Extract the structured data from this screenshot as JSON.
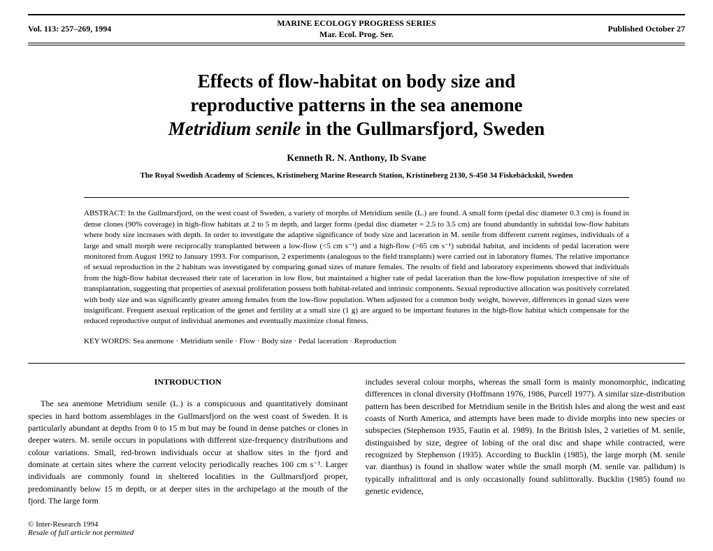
{
  "header": {
    "volume": "Vol. 113: 257–269, 1994",
    "series_line1": "MARINE ECOLOGY PROGRESS SERIES",
    "series_line2": "Mar. Ecol. Prog. Ser.",
    "published": "Published October 27"
  },
  "title_line1": "Effects of flow-habitat on body size and",
  "title_line2": "reproductive patterns in the sea anemone",
  "title_line3_ital": "Metridium senile",
  "title_line3_rest": " in the Gullmarsfjord, Sweden",
  "authors": "Kenneth R. N. Anthony, Ib Svane",
  "affiliation": "The Royal Swedish Academy of Sciences, Kristineberg Marine Research Station, Kristineberg 2130, S-450 34 Fiskebäckskil, Sweden",
  "abstract_label": "ABSTRACT: ",
  "abstract_text": "In the Gullmarsfjord, on the west coast of Sweden, a variety of morphs of Metridium senile (L.) are found. A small form (pedal disc diameter 0.3 cm) is found in dense clones (90% coverage) in high-flow habitats at 2 to 5 m depth, and larger forms (pedal disc diameter = 2.5 to 3.5 cm) are found abundantly in subtidal low-flow habitats where body size increases with depth. In order to investigate the adaptive significance of body size and laceration in M. senile from different current regimes, individuals of a large and small morph were reciprocally transplanted between a low-flow (<5 cm s⁻¹) and a high-flow (>65 cm s⁻¹) subtidal habitat, and incidents of pedal laceration were monitored from August 1992 to January 1993. For comparison, 2 experiments (analogous to the field transplants) were carried out in laboratory flumes. The relative importance of sexual reproduction in the 2 habitats was investigated by comparing gonad sizes of mature females. The results of field and laboratory experiments showed that individuals from the high-flow habitat decreased their rate of laceration in low flow, but maintained a higher rate of pedal laceration than the low-flow population irrespective of site of transplantation, suggesting that properties of asexual proliferation possess both habitat-related and intrinsic components. Sexual reproductive allocation was positively correlated with body size and was significantly greater among females from the low-flow population. When adjusted for a common body weight, however, differences in gonad sizes were insignificant. Frequent asexual replication of the genet and fertility at a small size (1 g) are argued to be important features in the high-flow habitat which compensate for the reduced reproductive output of individual anemones and eventually maximize clonal fitness.",
  "keywords_label": "KEY WORDS: ",
  "keywords_text": "Sea anemone · Metridium senile · Flow · Body size · Pedal laceration · Reproduction",
  "intro_heading": "INTRODUCTION",
  "col1_text": "The sea anemone Metridium senile (L.) is a conspicuous and quantitatively dominant species in hard bottom assemblages in the Gullmarsfjord on the west coast of Sweden. It is particularly abundant at depths from 0 to 15 m but may be found in dense patches or clones in deeper waters. M. senile occurs in populations with different size-frequency distributions and colour variations. Small, red-brown individuals occur at shallow sites in the fjord and dominate at certain sites where the current velocity periodically reaches 100 cm s⁻¹. Larger individuals are commonly found in sheltered localities in the Gullmarsfjord proper, predominantly below 15 m depth, or at deeper sites in the archipelago at the mouth of the fjord. The large form",
  "col2_text": "includes several colour morphs, whereas the small form is mainly monomorphic, indicating differences in clonal diversity (Hoffmann 1976, 1986, Purcell 1977). A similar size-distribution pattern has been described for Metridium senile in the British Isles and along the west and east coasts of North America, and attempts have been made to divide morphs into new species or subspecies (Stephenson 1935, Fautin et al. 1989). In the British Isles, 2 varieties of M. senile, distinguished by size, degree of lobing of the oral disc and shape while contracted, were recognized by Stephenson (1935). According to Bucklin (1985), the large morph (M. senile var. dianthus) is found in shallow water while the small morph (M. senile var. pallidum) is typically infralittoral and is only occasionally found sublittorally. Bucklin (1985) found no genetic evidence,",
  "footer_line1": "© Inter-Research 1994",
  "footer_line2": "Resale of full article not permitted"
}
